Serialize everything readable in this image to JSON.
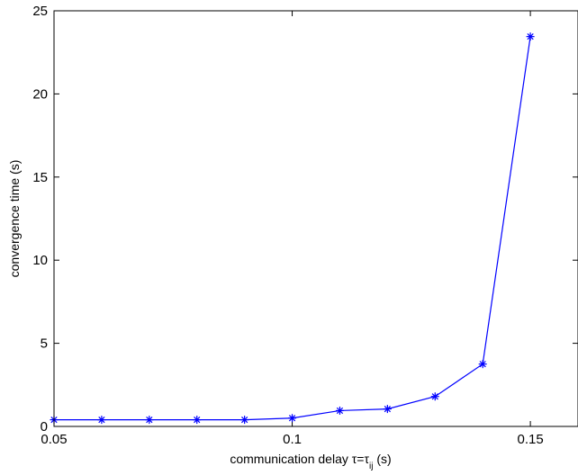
{
  "chart_data": {
    "type": "line",
    "xlabel": "communication delay τ=τ",
    "xlabel_sub": "ij",
    "xlabel_unit": " (s)",
    "ylabel": "convergence time (s)",
    "xlim": [
      0.05,
      0.16
    ],
    "ylim": [
      0,
      25
    ],
    "xticks": [
      0.05,
      0.1,
      0.15
    ],
    "xtick_labels": [
      "0.05",
      "0.1",
      "0.15"
    ],
    "yticks": [
      0,
      5,
      10,
      15,
      20,
      25
    ],
    "ytick_labels": [
      "0",
      "5",
      "10",
      "15",
      "20",
      "25"
    ],
    "grid": false,
    "marker": "*",
    "series_color": "#0000ff",
    "series": [
      {
        "x": [
          0.05,
          0.06,
          0.07,
          0.08,
          0.09,
          0.1,
          0.11,
          0.12,
          0.13,
          0.14,
          0.15
        ],
        "y": [
          0.4,
          0.4,
          0.4,
          0.4,
          0.4,
          0.5,
          0.95,
          1.05,
          1.8,
          3.75,
          23.45
        ]
      }
    ]
  }
}
